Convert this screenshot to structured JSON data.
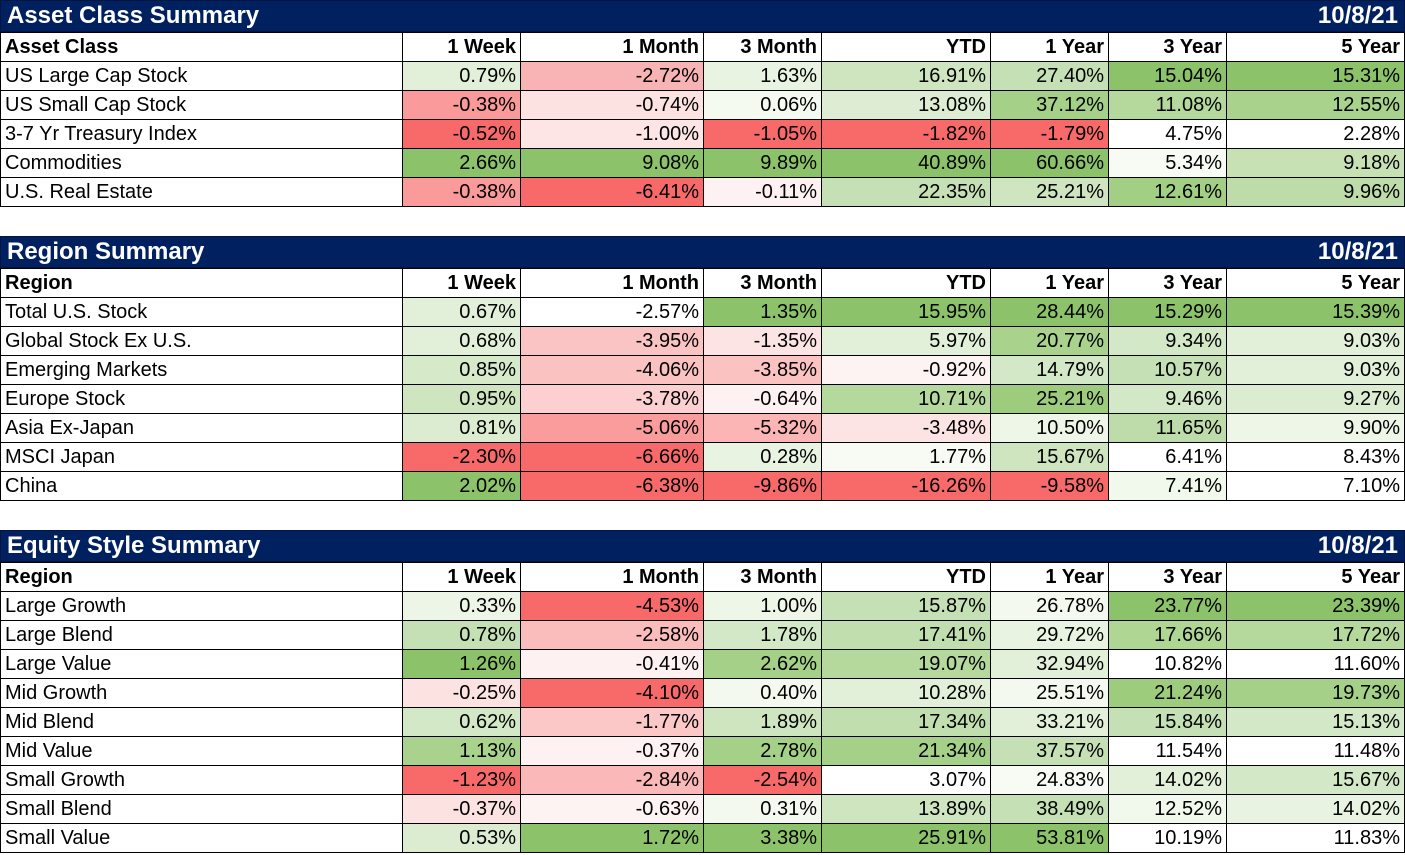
{
  "sections": [
    {
      "title": "Asset Class Summary",
      "date": "10/8/21",
      "headers": [
        "Asset Class",
        "1 Week",
        "1 Month",
        "3 Month",
        "YTD",
        "1 Year",
        "3 Year",
        "5 Year"
      ],
      "rows": [
        {
          "label": "US Large Cap Stock",
          "values": [
            "0.79%",
            "-2.72%",
            "1.63%",
            "16.91%",
            "27.40%",
            "15.04%",
            "15.31%"
          ],
          "colors": [
            "#e2efd9",
            "#f8b4b4",
            "#e9f3e1",
            "#cfe5c0",
            "#c5e0b4",
            "#8cc36a",
            "#8cc36a"
          ]
        },
        {
          "label": "US Small Cap Stock",
          "values": [
            "-0.38%",
            "-0.74%",
            "0.06%",
            "13.08%",
            "37.12%",
            "11.08%",
            "12.55%"
          ],
          "colors": [
            "#fa9a9a",
            "#fde2e2",
            "#f5faf1",
            "#ddecd2",
            "#a5d087",
            "#b5d99c",
            "#a9d28d"
          ]
        },
        {
          "label": "3-7 Yr Treasury Index",
          "values": [
            "-0.52%",
            "-1.00%",
            "-1.05%",
            "-1.82%",
            "-1.79%",
            "4.75%",
            "2.28%"
          ],
          "colors": [
            "#f86a6a",
            "#fde5e5",
            "#f86a6a",
            "#f86a6a",
            "#f86a6a",
            "#ffffff",
            "#ffffff"
          ]
        },
        {
          "label": "Commodities",
          "values": [
            "2.66%",
            "9.08%",
            "9.89%",
            "40.89%",
            "60.66%",
            "5.34%",
            "9.18%"
          ],
          "colors": [
            "#8cc36a",
            "#8cc36a",
            "#8cc36a",
            "#8cc36a",
            "#8cc36a",
            "#f7fbf4",
            "#c7e1b5"
          ]
        },
        {
          "label": "U.S. Real Estate",
          "values": [
            "-0.38%",
            "-6.41%",
            "-0.11%",
            "22.35%",
            "25.21%",
            "12.61%",
            "9.96%"
          ],
          "colors": [
            "#fa9a9a",
            "#f86a6a",
            "#fef1f1",
            "#c5e0b4",
            "#cfe5c0",
            "#a3cf84",
            "#bedcaa"
          ]
        }
      ]
    },
    {
      "title": "Region Summary",
      "date": "10/8/21",
      "headers": [
        "Region",
        "1 Week",
        "1 Month",
        "3 Month",
        "YTD",
        "1 Year",
        "3 Year",
        "5 Year"
      ],
      "rows": [
        {
          "label": "Total U.S. Stock",
          "values": [
            "0.67%",
            "-2.57%",
            "1.35%",
            "15.95%",
            "28.44%",
            "15.29%",
            "15.39%"
          ],
          "colors": [
            "#e2efd9",
            "#ffffff",
            "#8cc36a",
            "#8cc36a",
            "#8cc36a",
            "#8cc36a",
            "#8cc36a"
          ]
        },
        {
          "label": "Global Stock Ex U.S.",
          "values": [
            "0.68%",
            "-3.95%",
            "-1.35%",
            "5.97%",
            "20.77%",
            "9.34%",
            "9.03%"
          ],
          "colors": [
            "#e2efd9",
            "#fbc4c4",
            "#fde4e4",
            "#e2efd9",
            "#a9d28d",
            "#d3e8c6",
            "#e2efd9"
          ]
        },
        {
          "label": "Emerging Markets",
          "values": [
            "0.85%",
            "-4.06%",
            "-3.85%",
            "-0.92%",
            "14.79%",
            "10.57%",
            "9.03%"
          ],
          "colors": [
            "#d6e9c9",
            "#fbc2c2",
            "#fbc2c2",
            "#fef3f3",
            "#d3e8c6",
            "#c5e0b4",
            "#e2efd9"
          ]
        },
        {
          "label": "Europe Stock",
          "values": [
            "0.95%",
            "-3.78%",
            "-0.64%",
            "10.71%",
            "25.21%",
            "9.46%",
            "9.27%"
          ],
          "colors": [
            "#cfe5c0",
            "#fcd0d0",
            "#fdf1f1",
            "#b5d99c",
            "#9ccc7c",
            "#d3e8c6",
            "#dbecd0"
          ]
        },
        {
          "label": "Asia Ex-Japan",
          "values": [
            "0.81%",
            "-5.06%",
            "-5.32%",
            "-3.48%",
            "10.50%",
            "11.65%",
            "9.90%"
          ],
          "colors": [
            "#dbecd0",
            "#fa9c9c",
            "#fbb5b5",
            "#fde4e4",
            "#eef6e8",
            "#bedcaa",
            "#eef6e8"
          ]
        },
        {
          "label": "MSCI Japan",
          "values": [
            "-2.30%",
            "-6.66%",
            "0.28%",
            "1.77%",
            "15.67%",
            "6.41%",
            "8.43%"
          ],
          "colors": [
            "#f86a6a",
            "#f86a6a",
            "#e9f3e1",
            "#f7fbf4",
            "#cfe5c0",
            "#ffffff",
            "#ffffff"
          ]
        },
        {
          "label": "China",
          "values": [
            "2.02%",
            "-6.38%",
            "-9.86%",
            "-16.26%",
            "-9.58%",
            "7.41%",
            "7.10%"
          ],
          "colors": [
            "#8cc36a",
            "#f86a6a",
            "#f86a6a",
            "#f86a6a",
            "#f86a6a",
            "#f1f8ec",
            "#ffffff"
          ]
        }
      ]
    },
    {
      "title": "Equity Style Summary",
      "date": "10/8/21",
      "headers": [
        "Region",
        "1 Week",
        "1 Month",
        "3 Month",
        "YTD",
        "1 Year",
        "3 Year",
        "5 Year"
      ],
      "rows": [
        {
          "label": "Large Growth",
          "values": [
            "0.33%",
            "-4.53%",
            "1.00%",
            "15.87%",
            "26.78%",
            "23.77%",
            "23.39%"
          ],
          "colors": [
            "#edf5e6",
            "#f86a6a",
            "#eef6e8",
            "#c5e0b4",
            "#f3f9ef",
            "#8cc36a",
            "#8cc36a"
          ]
        },
        {
          "label": "Large Blend",
          "values": [
            "0.78%",
            "-2.58%",
            "1.78%",
            "17.41%",
            "29.72%",
            "17.66%",
            "17.72%"
          ],
          "colors": [
            "#c5e0b4",
            "#fbbcbc",
            "#d3e8c6",
            "#c1deae",
            "#e9f3e1",
            "#b0d694",
            "#b5d99c"
          ]
        },
        {
          "label": "Large Value",
          "values": [
            "1.26%",
            "-0.41%",
            "2.62%",
            "19.07%",
            "32.94%",
            "10.82%",
            "11.60%"
          ],
          "colors": [
            "#8cc36a",
            "#fef1f1",
            "#a5d087",
            "#b5d99c",
            "#e2efd9",
            "#ffffff",
            "#ffffff"
          ]
        },
        {
          "label": "Mid Growth",
          "values": [
            "-0.25%",
            "-4.10%",
            "0.40%",
            "10.28%",
            "25.51%",
            "21.24%",
            "19.73%"
          ],
          "colors": [
            "#fde2e2",
            "#f86a6a",
            "#f3f9ef",
            "#e2efd9",
            "#f3f9ef",
            "#9ccc7c",
            "#a5d087"
          ]
        },
        {
          "label": "Mid Blend",
          "values": [
            "0.62%",
            "-1.77%",
            "1.89%",
            "17.34%",
            "33.21%",
            "15.84%",
            "15.13%"
          ],
          "colors": [
            "#d3e8c6",
            "#fbc7c7",
            "#cfe5c0",
            "#c1deae",
            "#e2efd9",
            "#c5e0b4",
            "#d3e8c6"
          ]
        },
        {
          "label": "Mid Value",
          "values": [
            "1.13%",
            "-0.37%",
            "2.78%",
            "21.34%",
            "37.57%",
            "11.54%",
            "11.48%"
          ],
          "colors": [
            "#a9d28d",
            "#fef1f1",
            "#a5d087",
            "#a5d087",
            "#c5e0b4",
            "#ffffff",
            "#ffffff"
          ]
        },
        {
          "label": "Small Growth",
          "values": [
            "-1.23%",
            "-2.84%",
            "-2.54%",
            "3.07%",
            "24.83%",
            "14.02%",
            "15.67%"
          ],
          "colors": [
            "#f86a6a",
            "#fbb8b8",
            "#f86a6a",
            "#ffffff",
            "#f7fbf4",
            "#e2efd9",
            "#d3e8c6"
          ]
        },
        {
          "label": "Small Blend",
          "values": [
            "-0.37%",
            "-0.63%",
            "0.31%",
            "13.89%",
            "38.49%",
            "12.52%",
            "14.02%"
          ],
          "colors": [
            "#fde2e2",
            "#fef3f3",
            "#f3f9ef",
            "#cfe5c0",
            "#c5e0b4",
            "#f1f8ec",
            "#e9f3e1"
          ]
        },
        {
          "label": "Small Value",
          "values": [
            "0.53%",
            "1.72%",
            "3.38%",
            "25.91%",
            "53.81%",
            "10.19%",
            "11.83%"
          ],
          "colors": [
            "#dbecd0",
            "#8cc36a",
            "#8cc36a",
            "#8cc36a",
            "#8cc36a",
            "#ffffff",
            "#ffffff"
          ]
        }
      ]
    }
  ]
}
